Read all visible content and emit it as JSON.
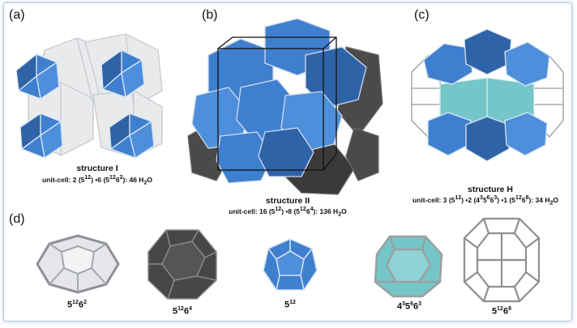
{
  "panels": {
    "a": {
      "label": "(a)",
      "name": "structure I",
      "unit_cell": {
        "prefix": "unit-cell: 2 (5",
        "s1": "12",
        "mid": ") •6 (5",
        "s2": "12",
        "mid2": "6",
        "s3": "2",
        "suffix": "): 46 H",
        "sub": "2",
        "end": "O"
      }
    },
    "b": {
      "label": "(b)",
      "name": "structure II",
      "unit_cell": {
        "prefix": "unit-cell: 16 (5",
        "s1": "12",
        "mid": ") •8 (5",
        "s2": "12",
        "mid2": "6",
        "s3": "4",
        "suffix": "): 136 H",
        "sub": "2",
        "end": "O"
      }
    },
    "c": {
      "label": "(c)",
      "name": "structure H",
      "unit_cell": {
        "prefix": "unit-cell: 3 (5",
        "s1": "12",
        "mid": ") •2 (4",
        "s2": "3",
        "mid2": "5",
        "s3": "6",
        "mid3": "6",
        "s4": "3",
        "mid4": ") •1 (5",
        "s5": "12",
        "mid5": "6",
        "s6": "8",
        "suffix": "): 34 H",
        "sub": "2",
        "end": "O"
      }
    },
    "d": {
      "label": "(d)"
    }
  },
  "cages": [
    {
      "base": "5",
      "sup1": "12",
      "base2": "6",
      "sup2": "2",
      "icon": "cage-512-62-icon",
      "color": "#d9dcdf"
    },
    {
      "base": "5",
      "sup1": "12",
      "base2": "6",
      "sup2": "4",
      "icon": "cage-512-64-icon",
      "color": "#4a4a4a"
    },
    {
      "base": "5",
      "sup1": "12",
      "icon": "cage-512-icon",
      "color": "#3f7fcf"
    },
    {
      "base": "4",
      "sup1": "3",
      "base2": "5",
      "sup2": "6",
      "base3": "6",
      "sup3": "3",
      "icon": "cage-435663-icon",
      "color": "#74c6c8"
    },
    {
      "base": "5",
      "sup1": "12",
      "base2": "6",
      "sup2": "8",
      "icon": "cage-51268-icon",
      "color": "#ffffff"
    }
  ],
  "colors": {
    "blue": "#3f7fcf",
    "dark": "#4a4a4a",
    "light": "#d9dcdf",
    "cyan": "#74c6c8",
    "frame": "#b9c9dd"
  }
}
